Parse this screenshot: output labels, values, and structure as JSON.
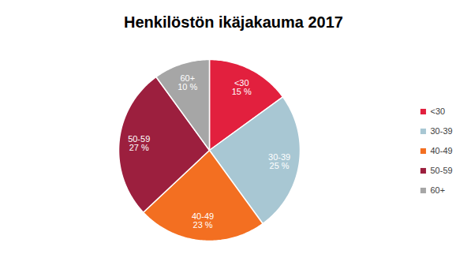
{
  "chart_data": {
    "type": "pie",
    "title": "Henkilöstön ikäjakauma 2017",
    "categories": [
      "<30",
      "30-39",
      "40-49",
      "50-59",
      "60+"
    ],
    "values": [
      15,
      25,
      23,
      27,
      10
    ],
    "value_labels": [
      "15 %",
      "25 %",
      "23 %",
      "27 %",
      "10 %"
    ],
    "colors": [
      "#e2203e",
      "#a8c7d3",
      "#f36f21",
      "#9c1f3e",
      "#a6a6a6"
    ],
    "data_labels": true,
    "legend": "right"
  }
}
